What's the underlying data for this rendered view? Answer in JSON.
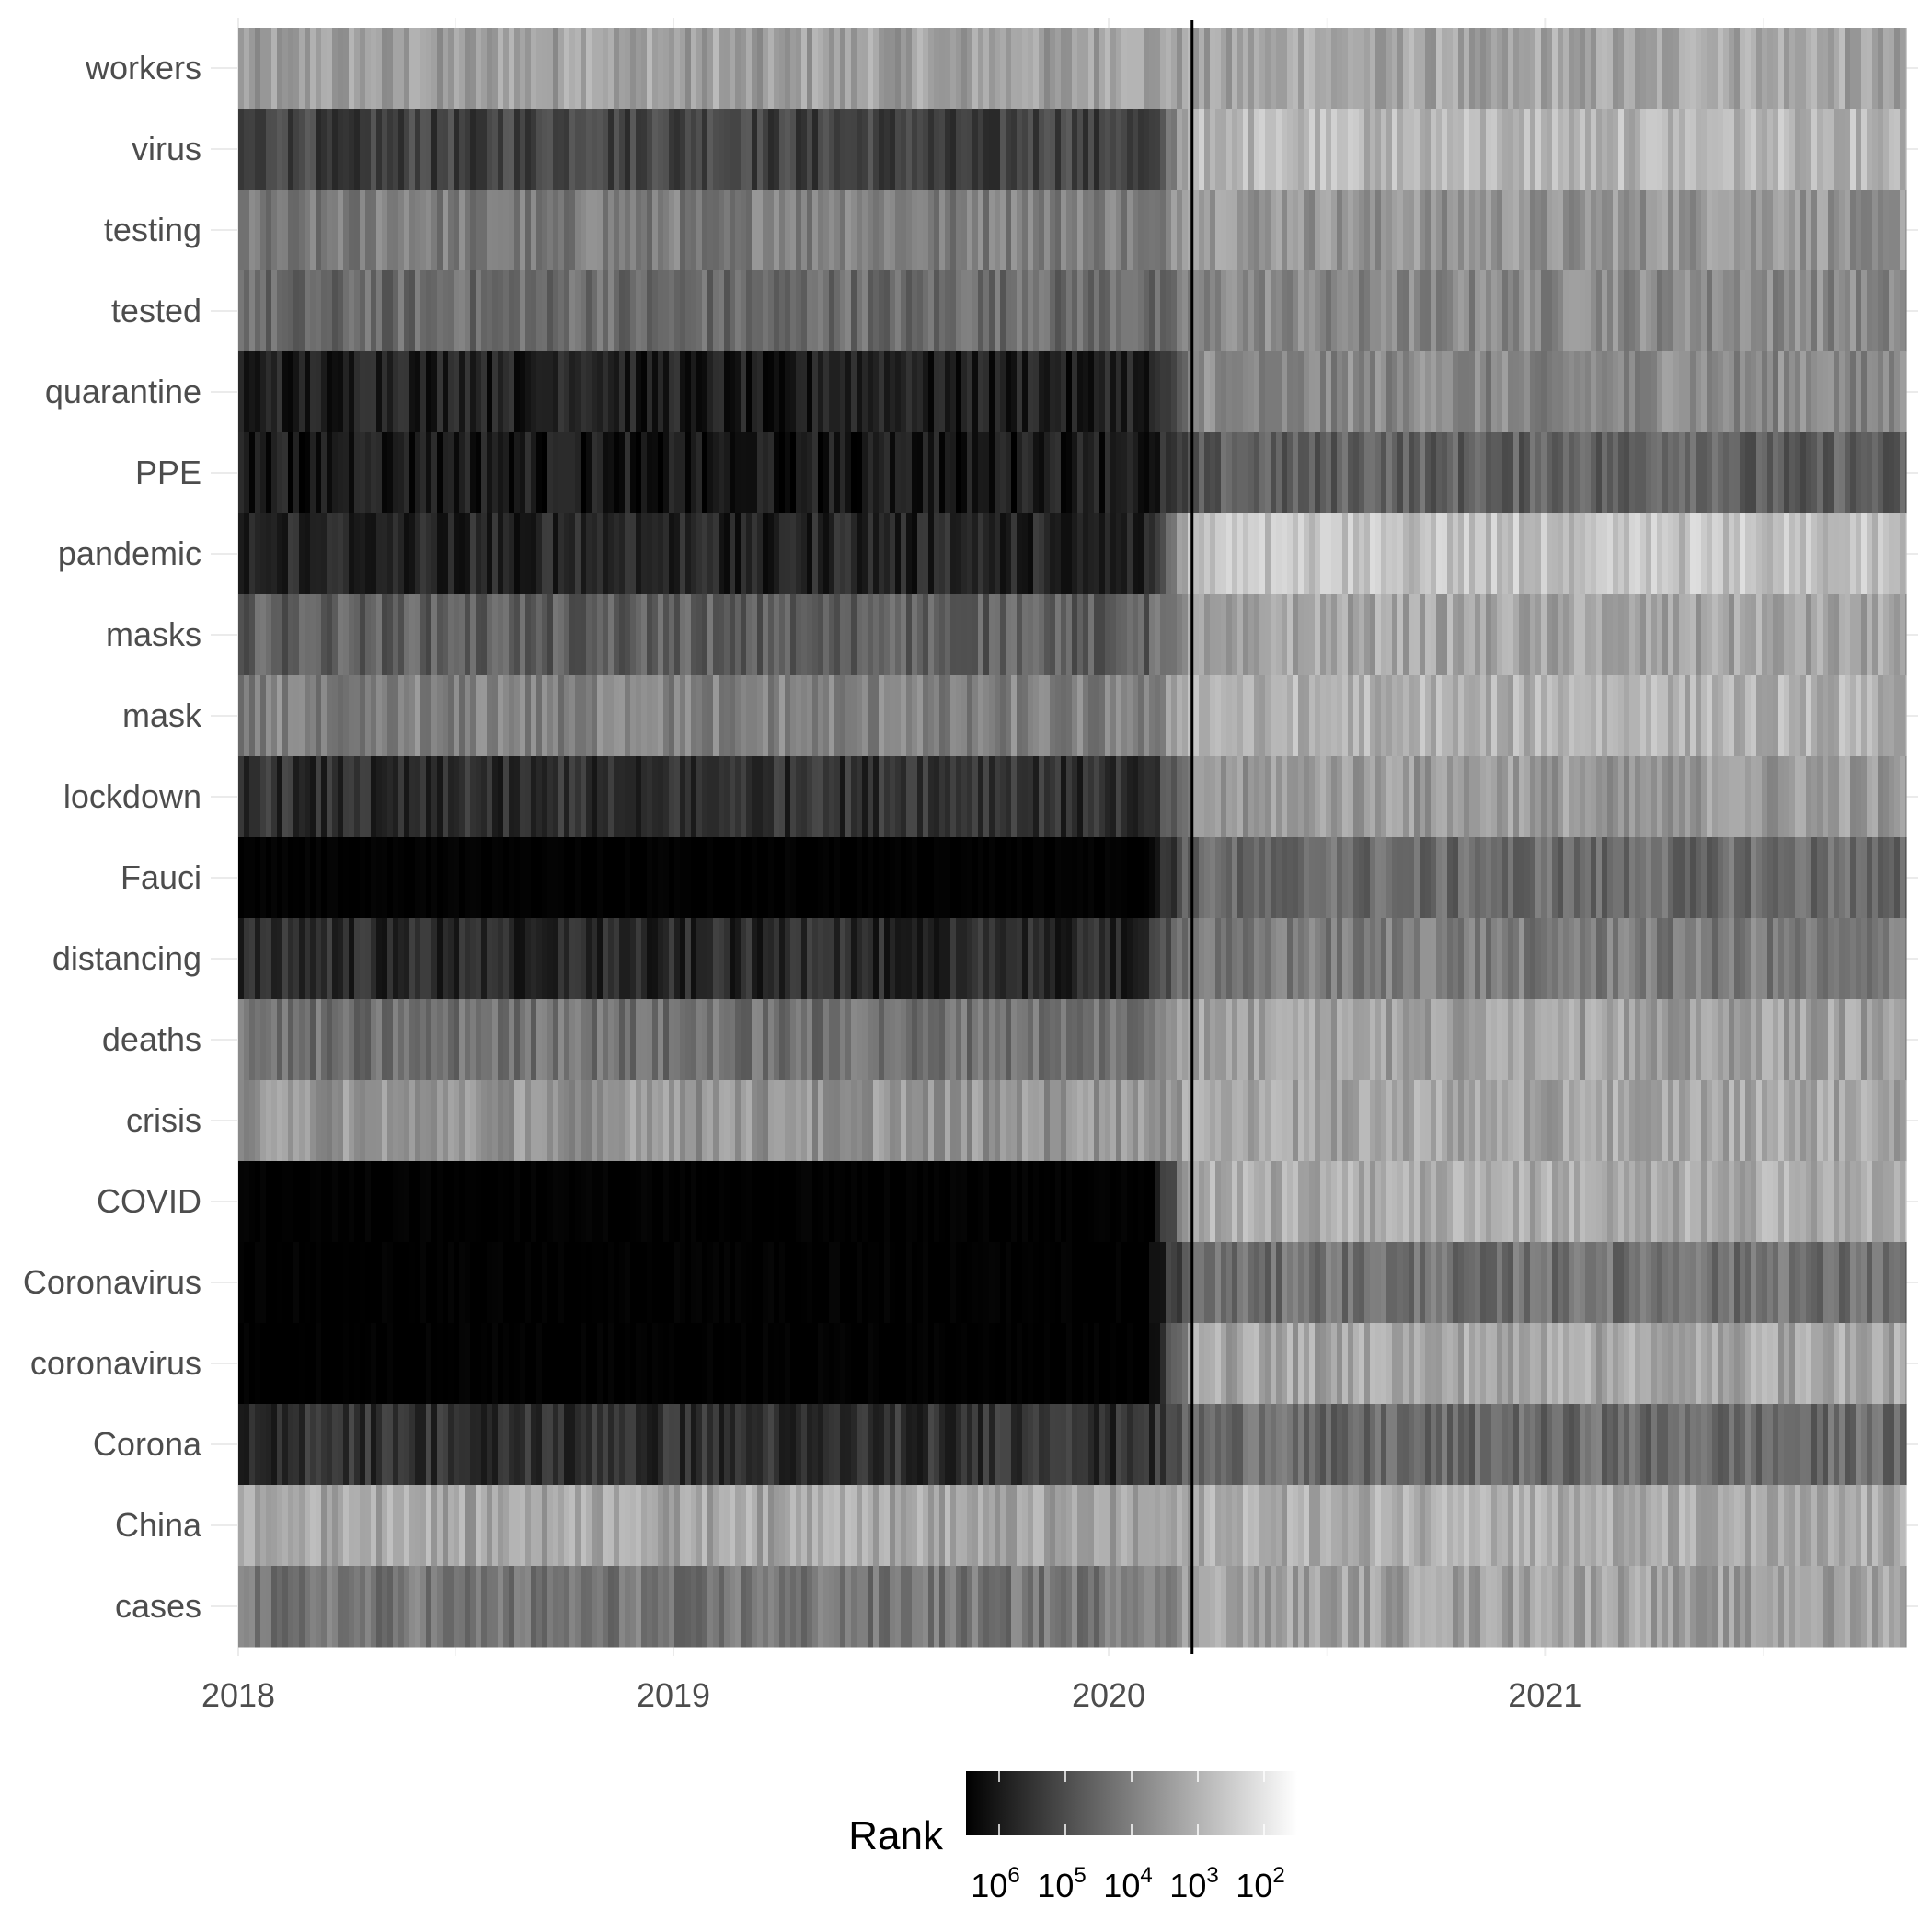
{
  "chart_data": {
    "type": "heatmap",
    "title": "",
    "xlabel": "",
    "ylabel": "",
    "x_ticks": [
      "2018",
      "2019",
      "2020",
      "2021"
    ],
    "x_range": [
      "2018-01-01",
      "2021-10-31"
    ],
    "reference_line": "2020-03-11",
    "rows": [
      {
        "label": "workers",
        "before": 3.3,
        "after": 3.2
      },
      {
        "label": "virus",
        "before": 4.9,
        "after": 2.9
      },
      {
        "label": "testing",
        "before": 3.9,
        "after": 3.5
      },
      {
        "label": "tested",
        "before": 4.2,
        "after": 3.7
      },
      {
        "label": "quarantine",
        "before": 5.5,
        "after": 3.7
      },
      {
        "label": "PPE",
        "before": 5.6,
        "after": 4.4
      },
      {
        "label": "pandemic",
        "before": 5.4,
        "after": 2.7
      },
      {
        "label": "masks",
        "before": 4.4,
        "after": 3.2
      },
      {
        "label": "mask",
        "before": 3.8,
        "after": 3.0
      },
      {
        "label": "lockdown",
        "before": 5.2,
        "after": 3.4
      },
      {
        "label": "Fauci",
        "before": 6.0,
        "after": 4.2
      },
      {
        "label": "distancing",
        "before": 5.3,
        "after": 3.9
      },
      {
        "label": "deaths",
        "before": 4.1,
        "after": 3.3
      },
      {
        "label": "crisis",
        "before": 3.5,
        "after": 3.2
      },
      {
        "label": "COVID",
        "before": 6.0,
        "after": 3.1
      },
      {
        "label": "Coronavirus",
        "before": 6.0,
        "after": 4.1
      },
      {
        "label": "coronavirus",
        "before": 6.0,
        "after": 3.2
      },
      {
        "label": "Corona",
        "before": 5.2,
        "after": 4.2
      },
      {
        "label": "China",
        "before": 3.2,
        "after": 3.1
      },
      {
        "label": "cases",
        "before": 4.0,
        "after": 3.3
      }
    ],
    "color_scale": {
      "title": "Rank",
      "scale": "log10",
      "domain": [
        6,
        1.7
      ],
      "low_color": "#000000",
      "high_color": "#ffffff",
      "ticks": [
        {
          "base": "10",
          "exp": "6"
        },
        {
          "base": "10",
          "exp": "5"
        },
        {
          "base": "10",
          "exp": "4"
        },
        {
          "base": "10",
          "exp": "3"
        },
        {
          "base": "10",
          "exp": "2"
        }
      ]
    },
    "grid": true,
    "legend_position": "bottom"
  }
}
